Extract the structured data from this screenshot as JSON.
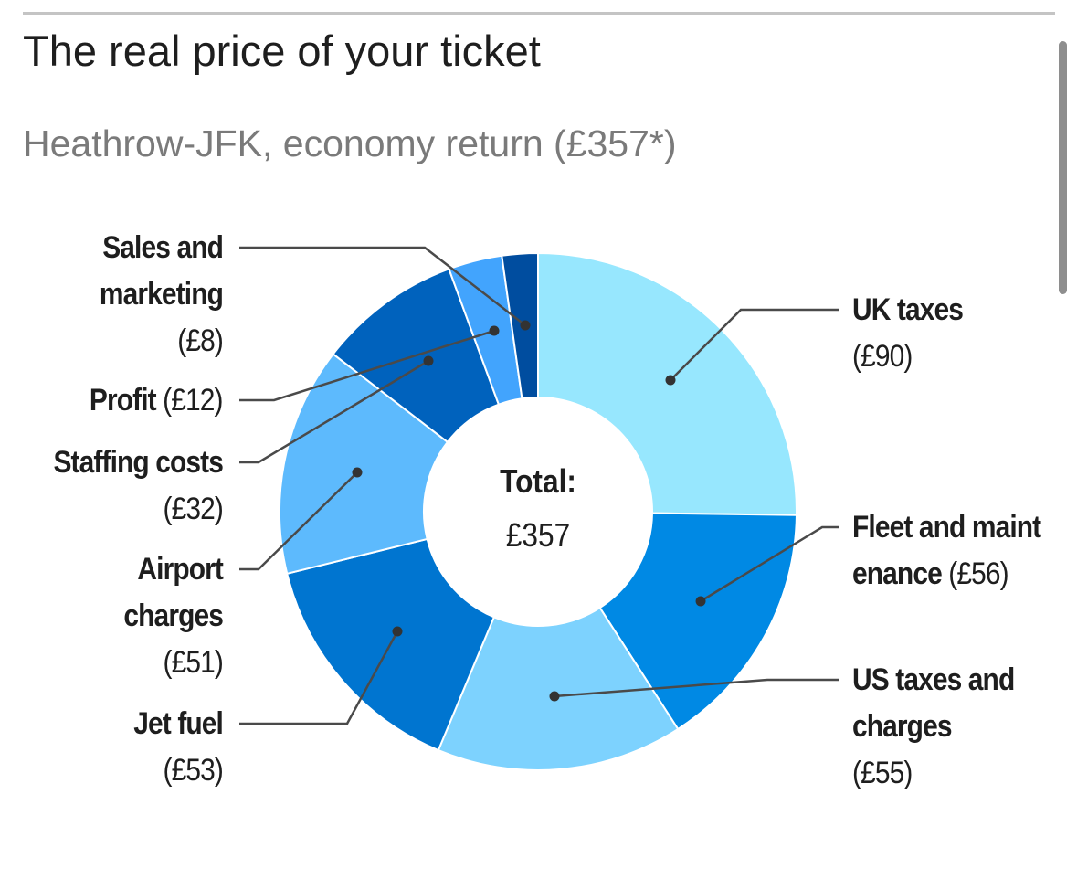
{
  "title": "The real price of your ticket",
  "subtitle": "Heathrow-JFK, economy return (£357*)",
  "chart_data": {
    "type": "pie",
    "donut": true,
    "title": "The real price of your ticket",
    "subtitle": "Heathrow-JFK, economy return (£357*)",
    "center_label": "Total:",
    "center_value": "£357",
    "total": 357,
    "slices": [
      {
        "name": "UK taxes",
        "value": 90,
        "value_label": "(£90)",
        "color": "#97e7fe"
      },
      {
        "name": "Fleet and maintenance",
        "value": 56,
        "value_label": "(£56)",
        "color": "#0089e4"
      },
      {
        "name": "US taxes and charges",
        "value": 55,
        "value_label": "(£55)",
        "color": "#7dd2fe"
      },
      {
        "name": "Jet fuel",
        "value": 53,
        "value_label": "(£53)",
        "color": "#0075d0"
      },
      {
        "name": "Airport charges",
        "value": 51,
        "value_label": "(£51)",
        "color": "#5dbafd"
      },
      {
        "name": "Staffing costs",
        "value": 32,
        "value_label": "(£32)",
        "color": "#0062bd"
      },
      {
        "name": "Profit",
        "value": 12,
        "value_label": "(£12)",
        "color": "#42a4fd"
      },
      {
        "name": "Sales and marketing",
        "value": 8,
        "value_label": "(£8)",
        "color": "#004d9f"
      }
    ]
  }
}
